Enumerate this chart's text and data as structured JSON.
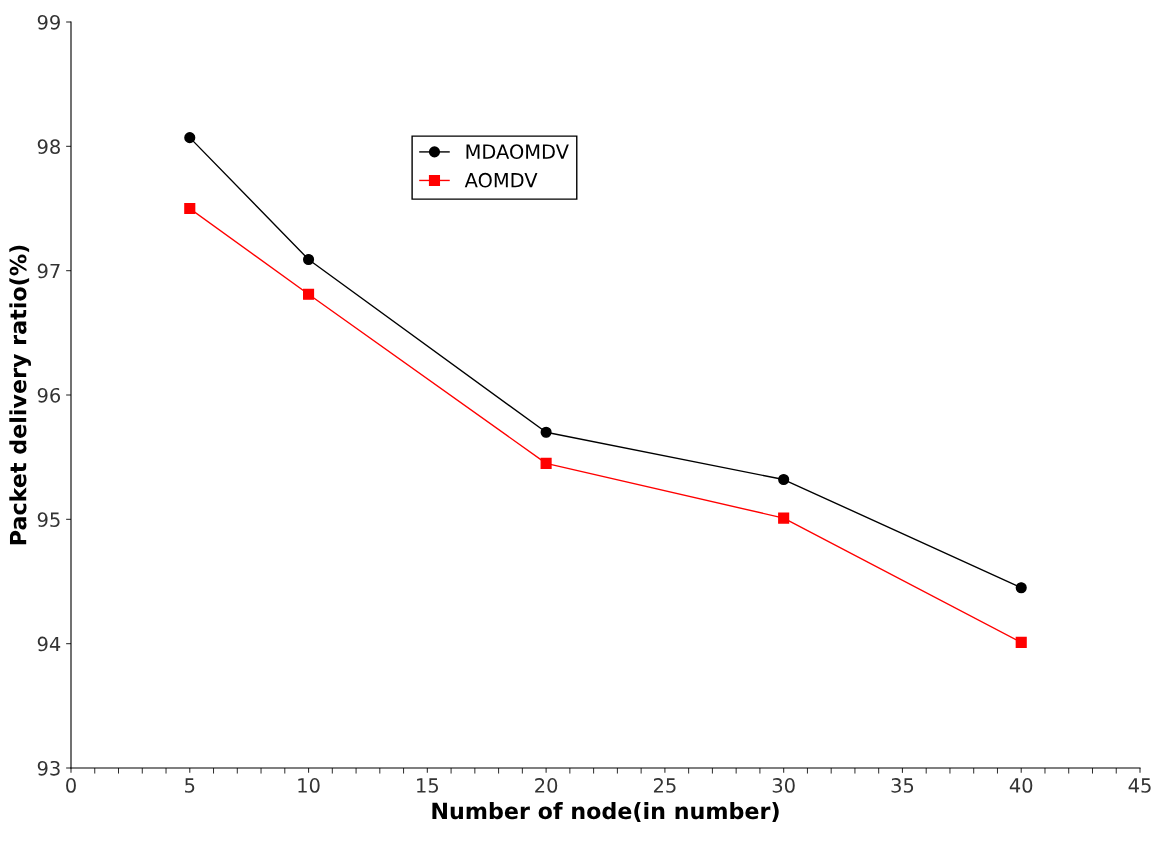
{
  "chart_data": {
    "type": "line",
    "xlabel": "Number of node(in number)",
    "ylabel": "Packet delivery ratio(%)",
    "x": [
      5,
      10,
      20,
      30,
      40
    ],
    "series": [
      {
        "name": "MDAOMDV",
        "color": "#000000",
        "marker": "circle",
        "values": [
          98.07,
          97.09,
          95.7,
          95.32,
          94.45
        ]
      },
      {
        "name": "AOMDV",
        "color": "#ff0000",
        "marker": "square",
        "values": [
          97.5,
          96.81,
          95.45,
          95.01,
          94.01
        ]
      }
    ],
    "xlim": [
      0,
      45
    ],
    "xticks": [
      0,
      5,
      10,
      15,
      20,
      25,
      30,
      35,
      40,
      45
    ],
    "ylim": [
      93,
      99
    ],
    "yticks": [
      93,
      94,
      95,
      96,
      97,
      98,
      99
    ],
    "grid": false,
    "legend": "top",
    "line_style": "solid"
  }
}
